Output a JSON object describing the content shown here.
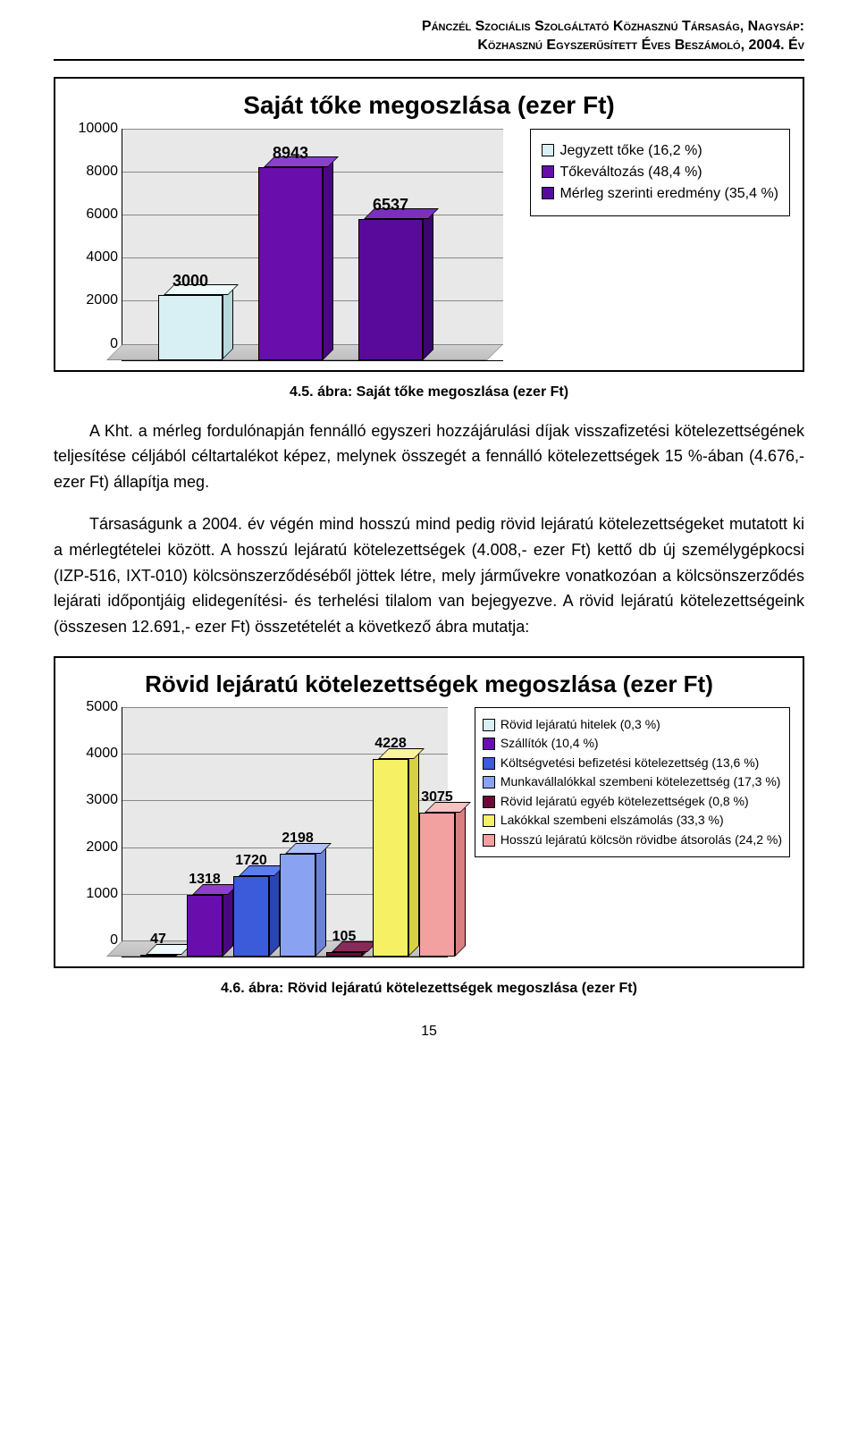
{
  "header": {
    "line1": "Pánczél Szociális Szolgáltató Közhasznú Társaság, Nagysáp:",
    "line2": "Közhasznú Egyszerűsített Éves Beszámoló, 2004. Év"
  },
  "chart1": {
    "type": "bar",
    "title": "Saját tőke megoszlása (ezer Ft)",
    "categories": [
      "Jegyzett tőke",
      "Tőkeváltozás",
      "Mérleg szerinti eredmény"
    ],
    "values": [
      3000,
      8943,
      6537
    ],
    "value_labels": [
      "3000",
      "8943",
      "6537"
    ],
    "bar_colors_front": [
      "#d8f0f3",
      "#6a0dad",
      "#5a0a9a"
    ],
    "bar_colors_top": [
      "#eefafc",
      "#8b3fcf",
      "#7b2fbf"
    ],
    "bar_colors_side": [
      "#b8d8db",
      "#4a0880",
      "#3a0670"
    ],
    "ylim": [
      0,
      10000
    ],
    "ytick_step": 2000,
    "yticks": [
      "0",
      "2000",
      "4000",
      "6000",
      "8000",
      "10000"
    ],
    "legend": [
      {
        "label": "Jegyzett tőke (16,2 %)",
        "color": "#d8f0f3"
      },
      {
        "label": "Tőkeváltozás (48,4 %)",
        "color": "#6a0dad"
      },
      {
        "label": "Mérleg szerinti eredmény (35,4 %)",
        "color": "#5a0a9a"
      }
    ],
    "plot_background": "#e8e8e8",
    "grid_color": "#888888",
    "label_fontsize": 18,
    "title_fontsize": 28,
    "caption": "4.5. ábra: Saját tőke megoszlása (ezer Ft)"
  },
  "para1": "A Kht. a mérleg fordulónapján fennálló egyszeri hozzájárulási díjak visszafizetési kötelezettségének teljesítése céljából céltartalékot képez, melynek összegét a fennálló kötelezettségek 15 %-ában (4.676,- ezer Ft) állapítja meg.",
  "para2": "Társaságunk a 2004. év végén mind hosszú mind pedig rövid lejáratú kötelezettségeket mutatott ki a mérlegtételei között. A hosszú lejáratú kötelezettségek (4.008,- ezer Ft) kettő db új személygépkocsi (IZP-516, IXT-010) kölcsönszerződéséből jöttek létre, mely járművekre vonatkozóan a kölcsönszerződés lejárati időpontjáig elidegenítési- és terhelési tilalom van bejegyezve. A rövid lejáratú kötelezettségeink (összesen 12.691,- ezer Ft) összetételét a következő ábra mutatja:",
  "chart2": {
    "type": "bar",
    "title": "Rövid lejáratú kötelezettségek megoszlása (ezer Ft)",
    "categories": [
      "Rövid lej. hitelek",
      "Szállítók",
      "Költségvetési",
      "Munkavállalókkal",
      "Rövid lej. egyéb",
      "Lakókkal",
      "Hosszú lej. átsorolás"
    ],
    "values": [
      47,
      1318,
      1720,
      2198,
      105,
      4228,
      3075
    ],
    "value_labels": [
      "47",
      "1318",
      "1720",
      "2198",
      "105",
      "4228",
      "3075"
    ],
    "bar_colors_front": [
      "#d8f0f3",
      "#6a0dad",
      "#3b5bdb",
      "#8aa2f2",
      "#6a0a3a",
      "#f6f065",
      "#f2a0a0"
    ],
    "bar_colors_top": [
      "#eefafc",
      "#8b3fcf",
      "#5c7cf2",
      "#aec0fa",
      "#8a2a5a",
      "#faf49a",
      "#f8c0c0"
    ],
    "bar_colors_side": [
      "#b8d8db",
      "#4a0880",
      "#2a44b0",
      "#6a82d8",
      "#4a0628",
      "#d8d240",
      "#d88080"
    ],
    "ylim": [
      0,
      5000
    ],
    "ytick_step": 1000,
    "yticks": [
      "0",
      "1000",
      "2000",
      "3000",
      "4000",
      "5000"
    ],
    "legend": [
      {
        "label": "Rövid lejáratú hitelek (0,3 %)",
        "color": "#d8f0f3"
      },
      {
        "label": "Szállítók (10,4 %)",
        "color": "#6a0dad"
      },
      {
        "label": "Költségvetési befizetési kötelezettség (13,6 %)",
        "color": "#3b5bdb"
      },
      {
        "label": "Munkavállalókkal szembeni kötelezettség (17,3 %)",
        "color": "#8aa2f2"
      },
      {
        "label": "Rövid lejáratú egyéb kötelezettségek (0,8 %)",
        "color": "#6a0a3a"
      },
      {
        "label": "Lakókkal szembeni elszámolás (33,3 %)",
        "color": "#f6f065"
      },
      {
        "label": "Hosszú lejáratú kölcsön rövidbe átsorolás (24,2 %)",
        "color": "#f2a0a0"
      }
    ],
    "plot_background": "#e8e8e8",
    "grid_color": "#888888",
    "label_fontsize": 16,
    "title_fontsize": 26,
    "caption": "4.6. ábra: Rövid lejáratú kötelezettségek megoszlása (ezer Ft)"
  },
  "page_number": "15"
}
